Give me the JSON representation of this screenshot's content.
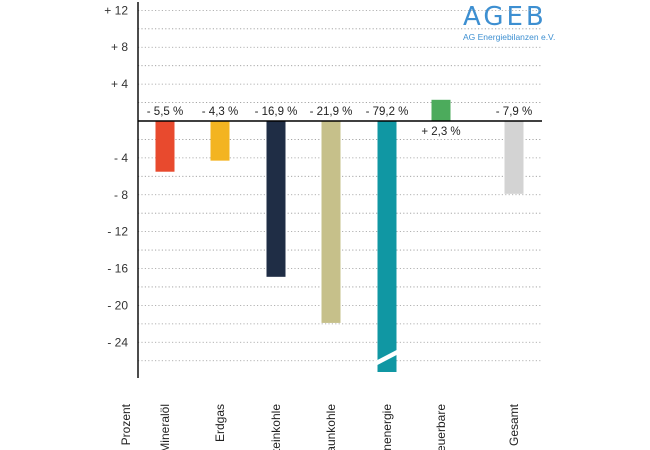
{
  "logo": {
    "name": "AGEB",
    "subtitle": "AG Energiebilanzen e.V.",
    "color": "#3d8fd1"
  },
  "chart_data": {
    "type": "bar",
    "ylabel": "Prozent",
    "ylim": [
      -27,
      12
    ],
    "y_ticks": [
      {
        "value": 12,
        "label": "+ 12"
      },
      {
        "value": 8,
        "label": "+ 8"
      },
      {
        "value": 4,
        "label": "+ 4"
      },
      {
        "value": -4,
        "label": "- 4"
      },
      {
        "value": -8,
        "label": "- 8"
      },
      {
        "value": -12,
        "label": "- 12"
      },
      {
        "value": -16,
        "label": "- 16"
      },
      {
        "value": -20,
        "label": "- 20"
      },
      {
        "value": -24,
        "label": "- 24"
      }
    ],
    "grid": "dotted horizontal every 2 units",
    "categories": [
      "Mineralöl",
      "Erdgas",
      "Steinkohle",
      "Braunkohle",
      "Kernenergie",
      "Erneuerbare",
      "Gesamt"
    ],
    "values": [
      -5.5,
      -4.3,
      -16.9,
      -21.9,
      -79.2,
      2.3,
      -7.9
    ],
    "value_labels": [
      "- 5,5 %",
      "- 4,3 %",
      "- 16,9 %",
      "- 21,9 %",
      "- 79,2 %",
      "+ 2,3 %",
      "- 7,9 %"
    ],
    "colors": [
      "#e84a2e",
      "#f3b421",
      "#1f2d45",
      "#c6c08a",
      "#1097a3",
      "#4cab5c",
      "#d3d3d3"
    ],
    "axis_break_on": "Kernenergie"
  }
}
